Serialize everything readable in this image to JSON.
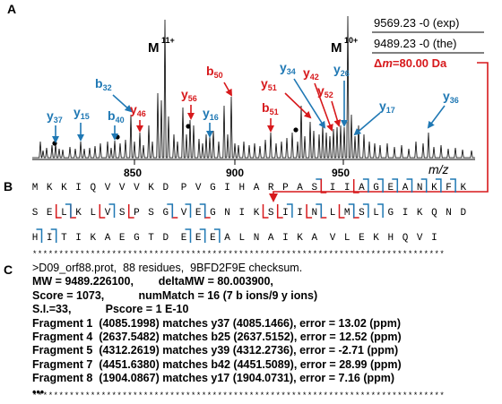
{
  "panel_labels": {
    "a": "A",
    "b": "B",
    "c": "C"
  },
  "colors": {
    "b_ion": "#1f78b4",
    "y_ion": "#d7191c",
    "spectrum": "#000000"
  },
  "spectrum": {
    "xlabel": "m/z",
    "ticks": [
      "850",
      "900",
      "950"
    ],
    "molecular_ions": [
      {
        "label": "M",
        "charge": "11+"
      },
      {
        "label": "M",
        "charge": "10+"
      }
    ],
    "mass_box": {
      "exp": "9569.23 -0 (exp)",
      "the": "9489.23 -0 (the)",
      "delta_symbol": "Δ",
      "delta_var": "m",
      "delta_value": "=80.00 Da"
    },
    "ions": [
      {
        "id": "y37",
        "type": "y",
        "num": "37"
      },
      {
        "id": "y15",
        "type": "y",
        "num": "15"
      },
      {
        "id": "b32",
        "type": "b",
        "num": "32"
      },
      {
        "id": "b40",
        "type": "b",
        "num": "40"
      },
      {
        "id": "y46",
        "type": "y",
        "num": "46"
      },
      {
        "id": "y56",
        "type": "y",
        "num": "56"
      },
      {
        "id": "b50",
        "type": "b",
        "num": "50"
      },
      {
        "id": "y16",
        "type": "y",
        "num": "16"
      },
      {
        "id": "b51",
        "type": "b",
        "num": "51"
      },
      {
        "id": "y51",
        "type": "y",
        "num": "51"
      },
      {
        "id": "y34",
        "type": "y",
        "num": "34"
      },
      {
        "id": "y42",
        "type": "y",
        "num": "42"
      },
      {
        "id": "y52",
        "type": "y",
        "num": "52"
      },
      {
        "id": "y26",
        "type": "y",
        "num": "26"
      },
      {
        "id": "y17",
        "type": "y",
        "num": "17"
      },
      {
        "id": "y36",
        "type": "y",
        "num": "36"
      }
    ]
  },
  "sequence": {
    "rows": [
      "MKKIQVVVKDPVGIHARPASIIAGEANKFK",
      "SELKLVSPSGVEGNIKSIINLMSLGIKQND",
      "HITIKAEGTDEEEALNAIKAVLEKHQVI"
    ]
  },
  "search_result": {
    "lines": [
      ">D09_orf88.prot,  88 residues,  9BFD2F9E checksum.",
      "MW = 9489.226100,        deltaMW = 80.003900,",
      "Score = 1073,           numMatch = 16 (7 b ions/9 y ions)",
      "S.I.=33,           Pscore = 1 E-10",
      "Fragment 1  (4085.1998) matches y37 (4085.1466), error = 13.02 (ppm)",
      "Fragment 4  (2637.5482) matches b25 (2637.5152), error = 12.52 (ppm)",
      "Fragment 5  (4312.2619) matches y39 (4312.2736), error = -2.71 (ppm)",
      "Fragment 7  (4451.6380) matches b42 (4451.5089), error = 28.99 (ppm)",
      "Fragment 8  (1904.0867) matches y17 (1904.0731), error = 7.16 (ppm)",
      "•••"
    ],
    "stars": "**************************************************************************************************************"
  }
}
